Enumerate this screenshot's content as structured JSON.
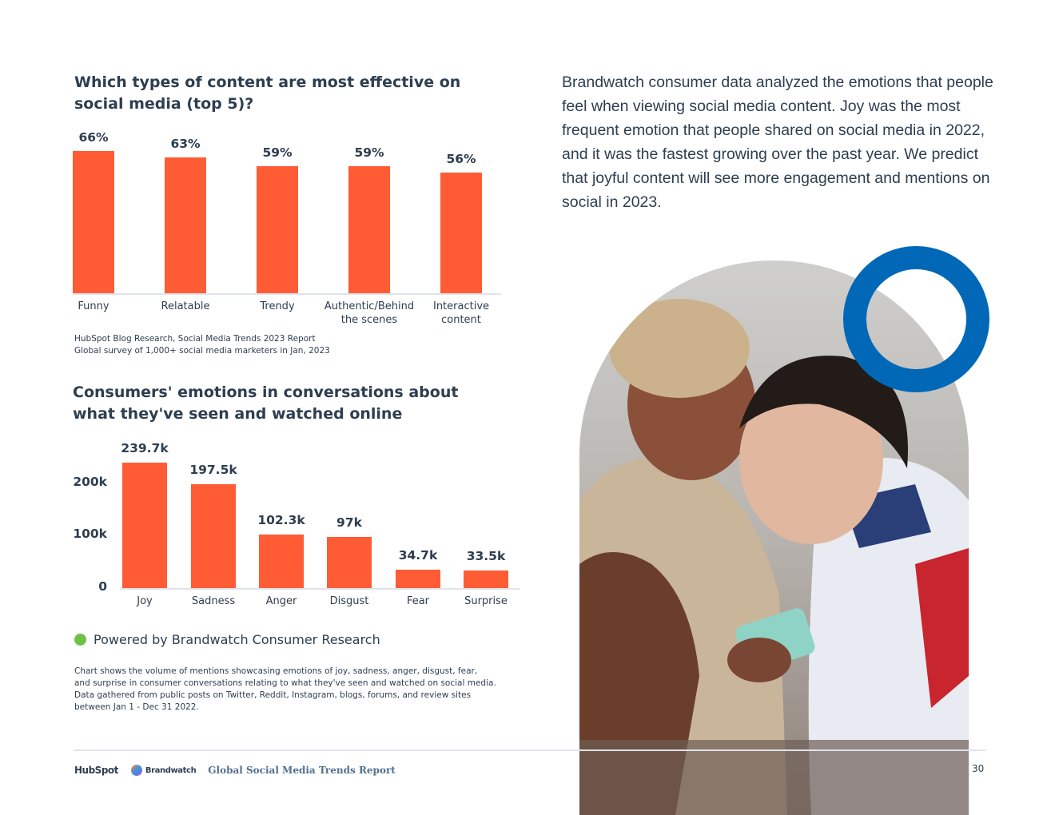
{
  "colors": {
    "accent": "#ff5c35",
    "text": "#2d3e50",
    "ring": "#0068b7",
    "dot": "#6dc144"
  },
  "chart_data": [
    {
      "type": "bar",
      "title": "Which types of content are most effective on social media (top 5)?",
      "categories": [
        "Funny",
        "Relatable",
        "Trendy",
        "Authentic/Behind the scenes",
        "Interactive content"
      ],
      "values": [
        66,
        63,
        59,
        59,
        56
      ],
      "value_labels": [
        "66%",
        "63%",
        "59%",
        "59%",
        "56%"
      ],
      "ylim": [
        0,
        66
      ],
      "source": [
        "HubSpot Blog Research, Social Media Trends 2023 Report",
        "Global survey of 1,000+ social media marketers in Jan, 2023"
      ]
    },
    {
      "type": "bar",
      "title": "Consumers' emotions in conversations about what they've seen and watched online",
      "categories": [
        "Joy",
        "Sadness",
        "Anger",
        "Disgust",
        "Fear",
        "Surprise"
      ],
      "values": [
        239.7,
        197.5,
        102.3,
        97,
        34.7,
        33.5
      ],
      "value_labels": [
        "239.7k",
        "197.5k",
        "102.3k",
        "97k",
        "34.7k",
        "33.5k"
      ],
      "yticks": [
        0,
        100,
        200
      ],
      "ytick_labels": [
        "0",
        "100k",
        "200k"
      ],
      "ylim": [
        0,
        239.7
      ]
    }
  ],
  "powered": {
    "prefix": "Powered by",
    "brand": "Brandwatch Consumer Research"
  },
  "note": [
    "Chart shows the volume of mentions showcasing emotions of joy, sadness, anger, disgust, fear,",
    "and surprise in consumer conversations relating to what they've seen and watched on social media.",
    "Data gathered from public posts on Twitter, Reddit, Instagram, blogs, forums, and review sites",
    "between Jan 1 - Dec 31 2022."
  ],
  "intro": "Brandwatch consumer data analyzed the emotions that people feel when viewing social media content. Joy was the most frequent emotion that people shared on social media in 2022, and it was the fastest growing over the past year. We predict that joyful content will see more engagement and mentions on social in 2023.",
  "footer": {
    "hubspot": "HubSpot",
    "brandwatch": "Brandwatch",
    "report": "Global Social Media Trends Report",
    "page": "30"
  }
}
